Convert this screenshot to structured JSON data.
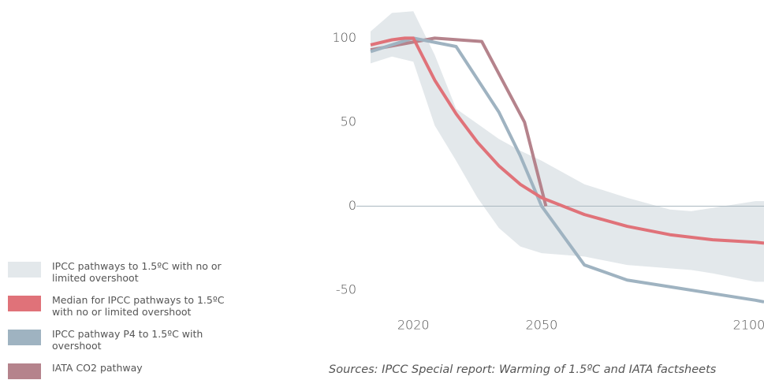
{
  "chart_data": {
    "type": "line",
    "sources": "Sources: IPCC Special report: Warming of 1.5ºC and IATA factsheets",
    "xlim": [
      2010,
      2102
    ],
    "xticks": [
      2020,
      2050,
      2100
    ],
    "ylim": [
      -65,
      118
    ],
    "yticks": [
      -50,
      0,
      50,
      100
    ],
    "reference_line": 0,
    "reference_color": "#aab8c0",
    "series": [
      {
        "name": "IPCC pathways to 1.5ºC with no or limited overshoot",
        "color": "#e3e8eb",
        "kind": "band",
        "x": [
          2010,
          2015,
          2020,
          2025,
          2030,
          2035,
          2040,
          2045,
          2050,
          2060,
          2070,
          2080,
          2085,
          2090,
          2100,
          2102
        ],
        "upper": [
          104,
          115,
          116,
          90,
          58,
          49,
          40,
          33,
          27,
          13,
          5,
          -2,
          -3,
          -1,
          3,
          3
        ],
        "lower": [
          85,
          89,
          86,
          48,
          27,
          5,
          -13,
          -24,
          -28,
          -30,
          -35,
          -37,
          -38,
          -40,
          -45,
          -45
        ]
      },
      {
        "name": "Median for IPCC pathways to 1.5ºC with no or limited overshoot",
        "color": "#e07279",
        "x": [
          2010,
          2015,
          2018,
          2020,
          2025,
          2030,
          2035,
          2040,
          2045,
          2050,
          2060,
          2070,
          2080,
          2090,
          2100,
          2102
        ],
        "values": [
          96,
          99,
          100,
          100,
          75,
          55,
          38,
          24,
          13,
          5,
          -5,
          -12,
          -17,
          -20,
          -21.5,
          -22
        ]
      },
      {
        "name": "IPCC pathway P4 to 1.5ºC with overshoot",
        "color": "#9fb3c1",
        "x": [
          2010,
          2020,
          2030,
          2040,
          2045,
          2050,
          2060,
          2070,
          2080,
          2090,
          2100,
          2102
        ],
        "values": [
          92,
          100,
          95,
          56,
          30,
          0,
          -35,
          -44,
          -48,
          -52,
          -56,
          -57
        ]
      },
      {
        "name": "IATA CO2 pathway",
        "color": "#b5838c",
        "x": [
          2010,
          2025,
          2036,
          2046,
          2051
        ],
        "values": [
          93,
          100,
          98,
          50,
          0
        ]
      }
    ]
  }
}
